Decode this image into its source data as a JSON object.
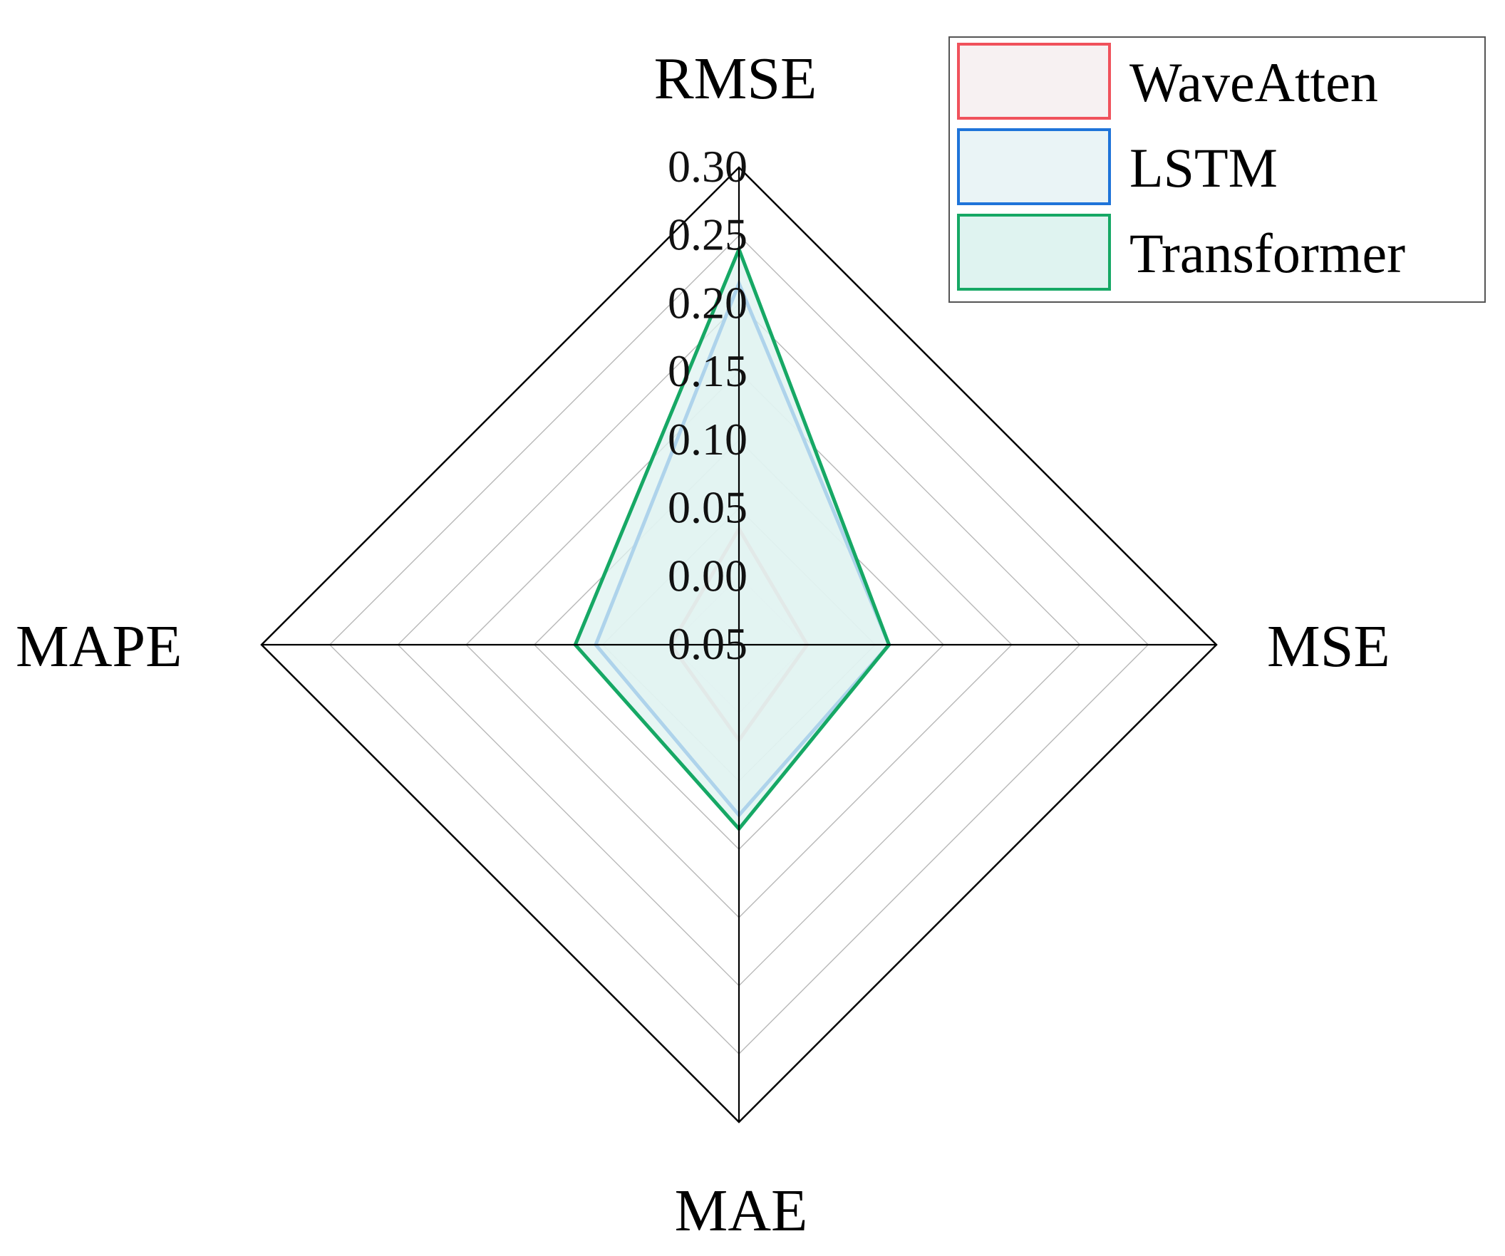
{
  "chart_data": {
    "type": "radar",
    "axes": [
      "RMSE",
      "MSE",
      "MAE",
      "MAPE"
    ],
    "tick_labels": [
      "0.05",
      "0.00",
      "0.05",
      "0.10",
      "0.15",
      "0.20",
      "0.25",
      "0.30"
    ],
    "range": [
      -0.05,
      0.3
    ],
    "grid": true,
    "legend_position": "top-right",
    "series": [
      {
        "name": "WaveAtten",
        "color": "#f0525c",
        "fill": "#f7f1f2",
        "values": [
          0.035,
          0.0,
          0.02,
          0.0
        ]
      },
      {
        "name": "LSTM",
        "color": "#1f74d9",
        "fill": "#eaf4f6",
        "values": [
          0.215,
          0.06,
          0.075,
          0.055
        ]
      },
      {
        "name": "Transformer",
        "color": "#16a865",
        "fill": "#dff3f0",
        "values": [
          0.24,
          0.06,
          0.085,
          0.07
        ]
      }
    ]
  }
}
